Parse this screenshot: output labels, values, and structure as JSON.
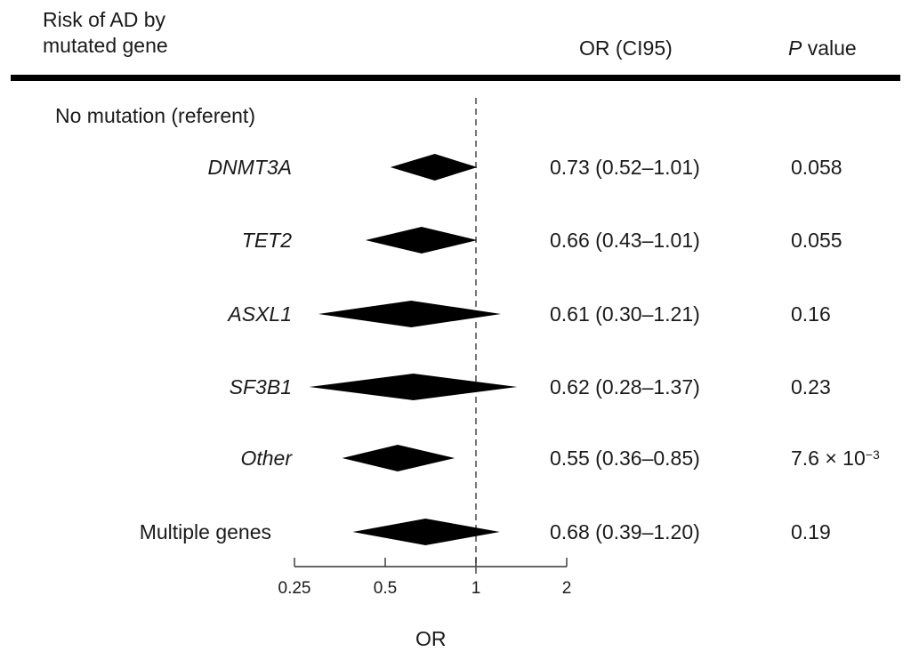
{
  "header": {
    "risk_label_line1": "Risk of AD by",
    "risk_label_line2": "mutated gene",
    "or_label": "OR (CI95)",
    "p_label_italic": "P",
    "p_label_rest": " value"
  },
  "referent_label": "No mutation (referent)",
  "chart_data": {
    "type": "forest",
    "xlabel": "OR",
    "x_scale": "log2",
    "xlim": [
      0.25,
      2
    ],
    "xticks": [
      "0.25",
      "0.5",
      "1",
      "2"
    ],
    "xtick_values": [
      0.25,
      0.5,
      1,
      2
    ],
    "reference_line": 1,
    "rows": [
      {
        "label": "DNMT3A",
        "italic": true,
        "or": 0.73,
        "ci_low": 0.52,
        "ci_high": 1.01,
        "or_text": "0.73 (0.52–1.01)",
        "p_text": "0.058",
        "p_exp": ""
      },
      {
        "label": "TET2",
        "italic": true,
        "or": 0.66,
        "ci_low": 0.43,
        "ci_high": 1.01,
        "or_text": "0.66 (0.43–1.01)",
        "p_text": "0.055",
        "p_exp": ""
      },
      {
        "label": "ASXL1",
        "italic": true,
        "or": 0.61,
        "ci_low": 0.3,
        "ci_high": 1.21,
        "or_text": "0.61 (0.30–1.21)",
        "p_text": "0.16",
        "p_exp": ""
      },
      {
        "label": "SF3B1",
        "italic": true,
        "or": 0.62,
        "ci_low": 0.28,
        "ci_high": 1.37,
        "or_text": "0.62 (0.28–1.37)",
        "p_text": "0.23",
        "p_exp": ""
      },
      {
        "label": "Other",
        "italic": true,
        "or": 0.55,
        "ci_low": 0.36,
        "ci_high": 0.85,
        "or_text": "0.55 (0.36–0.85)",
        "p_text": "7.6 × 10",
        "p_exp": "−3"
      },
      {
        "label": "Multiple genes",
        "italic": false,
        "or": 0.68,
        "ci_low": 0.39,
        "ci_high": 1.2,
        "or_text": "0.68 (0.39–1.20)",
        "p_text": "0.19",
        "p_exp": ""
      }
    ]
  }
}
